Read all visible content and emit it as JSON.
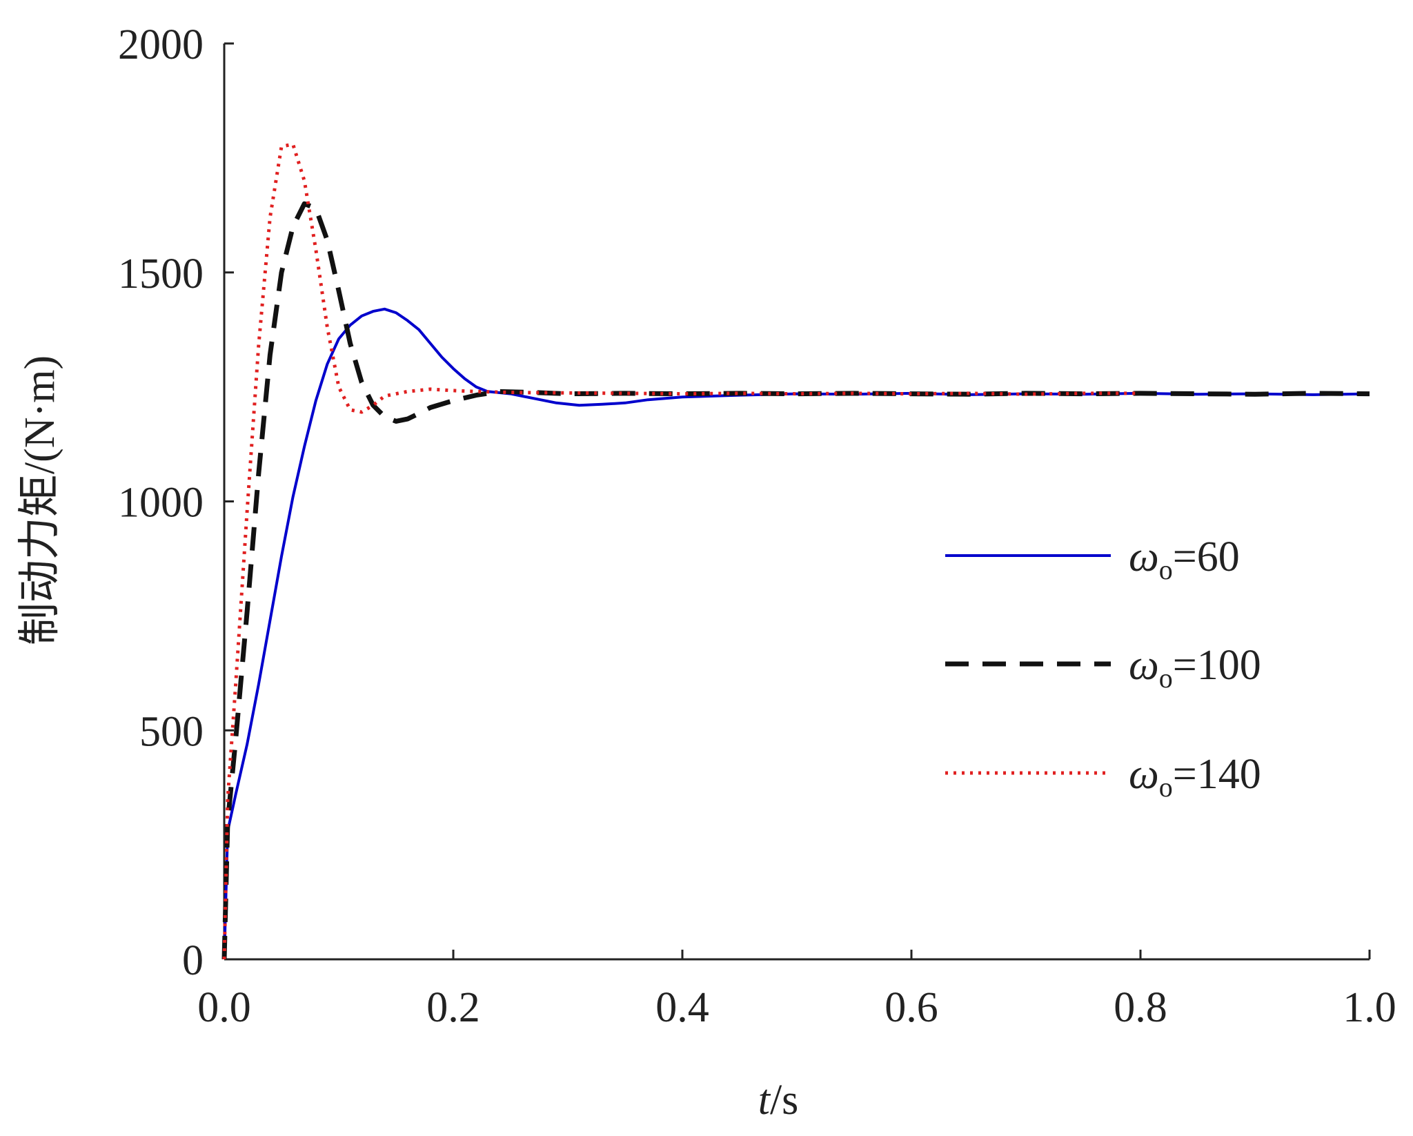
{
  "chart_data": {
    "type": "line",
    "xlabel": {
      "var": "t",
      "unit": "/s"
    },
    "ylabel": "制动力矩/(N·m)",
    "xlim": [
      0,
      1.0
    ],
    "ylim": [
      0,
      2000
    ],
    "xticks": [
      "0.0",
      "0.2",
      "0.4",
      "0.6",
      "0.8",
      "1.0"
    ],
    "yticks": [
      "0",
      "500",
      "1000",
      "1500",
      "2000"
    ],
    "grid": false,
    "legend_position": "right",
    "series": [
      {
        "name": "ω=60",
        "legend_symbol": "ω",
        "legend_sub": "o",
        "legend_value": "=60",
        "color": "#0000cc",
        "style": "solid",
        "points": [
          [
            0,
            0
          ],
          [
            0.003,
            280
          ],
          [
            0.01,
            360
          ],
          [
            0.02,
            470
          ],
          [
            0.03,
            600
          ],
          [
            0.04,
            740
          ],
          [
            0.05,
            880
          ],
          [
            0.06,
            1010
          ],
          [
            0.07,
            1120
          ],
          [
            0.08,
            1220
          ],
          [
            0.09,
            1300
          ],
          [
            0.1,
            1355
          ],
          [
            0.11,
            1385
          ],
          [
            0.12,
            1405
          ],
          [
            0.13,
            1415
          ],
          [
            0.14,
            1420
          ],
          [
            0.15,
            1412
          ],
          [
            0.16,
            1395
          ],
          [
            0.17,
            1375
          ],
          [
            0.18,
            1345
          ],
          [
            0.19,
            1315
          ],
          [
            0.2,
            1290
          ],
          [
            0.21,
            1268
          ],
          [
            0.22,
            1250
          ],
          [
            0.23,
            1240
          ],
          [
            0.25,
            1235
          ],
          [
            0.27,
            1225
          ],
          [
            0.29,
            1215
          ],
          [
            0.31,
            1210
          ],
          [
            0.33,
            1212
          ],
          [
            0.35,
            1215
          ],
          [
            0.37,
            1222
          ],
          [
            0.4,
            1228
          ],
          [
            0.45,
            1232
          ],
          [
            0.5,
            1235
          ],
          [
            0.55,
            1234
          ],
          [
            0.6,
            1236
          ],
          [
            0.65,
            1233
          ],
          [
            0.7,
            1235
          ],
          [
            0.75,
            1234
          ],
          [
            0.8,
            1236
          ],
          [
            0.85,
            1234
          ],
          [
            0.9,
            1235
          ],
          [
            0.95,
            1233
          ],
          [
            1.0,
            1235
          ]
        ]
      },
      {
        "name": "ω=100",
        "legend_symbol": "ω",
        "legend_sub": "o",
        "legend_value": "=100",
        "color": "#111111",
        "style": "dashed",
        "points": [
          [
            0,
            0
          ],
          [
            0.003,
            300
          ],
          [
            0.01,
            480
          ],
          [
            0.02,
            760
          ],
          [
            0.03,
            1060
          ],
          [
            0.04,
            1320
          ],
          [
            0.05,
            1500
          ],
          [
            0.06,
            1600
          ],
          [
            0.07,
            1650
          ],
          [
            0.08,
            1640
          ],
          [
            0.09,
            1570
          ],
          [
            0.1,
            1460
          ],
          [
            0.11,
            1345
          ],
          [
            0.12,
            1260
          ],
          [
            0.13,
            1210
          ],
          [
            0.14,
            1185
          ],
          [
            0.15,
            1175
          ],
          [
            0.16,
            1180
          ],
          [
            0.17,
            1192
          ],
          [
            0.18,
            1205
          ],
          [
            0.2,
            1220
          ],
          [
            0.22,
            1232
          ],
          [
            0.24,
            1240
          ],
          [
            0.27,
            1238
          ],
          [
            0.3,
            1235
          ],
          [
            0.35,
            1236
          ],
          [
            0.4,
            1235
          ],
          [
            0.45,
            1236
          ],
          [
            0.5,
            1235
          ],
          [
            0.55,
            1236
          ],
          [
            0.6,
            1235
          ],
          [
            0.65,
            1234
          ],
          [
            0.7,
            1236
          ],
          [
            0.75,
            1235
          ],
          [
            0.8,
            1236
          ],
          [
            0.85,
            1235
          ],
          [
            0.9,
            1234
          ],
          [
            0.95,
            1236
          ],
          [
            1.0,
            1235
          ]
        ]
      },
      {
        "name": "ω=140",
        "legend_symbol": "ω",
        "legend_sub": "o",
        "legend_value": "=140",
        "color": "#e02020",
        "style": "dotted",
        "points": [
          [
            0,
            0
          ],
          [
            0.003,
            350
          ],
          [
            0.01,
            600
          ],
          [
            0.02,
            980
          ],
          [
            0.03,
            1340
          ],
          [
            0.04,
            1620
          ],
          [
            0.05,
            1775
          ],
          [
            0.06,
            1780
          ],
          [
            0.07,
            1700
          ],
          [
            0.08,
            1550
          ],
          [
            0.09,
            1380
          ],
          [
            0.1,
            1250
          ],
          [
            0.11,
            1200
          ],
          [
            0.12,
            1195
          ],
          [
            0.13,
            1210
          ],
          [
            0.14,
            1230
          ],
          [
            0.16,
            1240
          ],
          [
            0.18,
            1245
          ],
          [
            0.2,
            1242
          ],
          [
            0.22,
            1240
          ],
          [
            0.25,
            1238
          ],
          [
            0.3,
            1237
          ],
          [
            0.35,
            1236
          ],
          [
            0.4,
            1235
          ],
          [
            0.45,
            1236
          ],
          [
            0.5,
            1235
          ],
          [
            0.55,
            1236
          ],
          [
            0.6,
            1235
          ],
          [
            0.65,
            1236
          ],
          [
            0.7,
            1234
          ],
          [
            0.75,
            1236
          ],
          [
            0.8,
            1236
          ]
        ]
      }
    ]
  }
}
